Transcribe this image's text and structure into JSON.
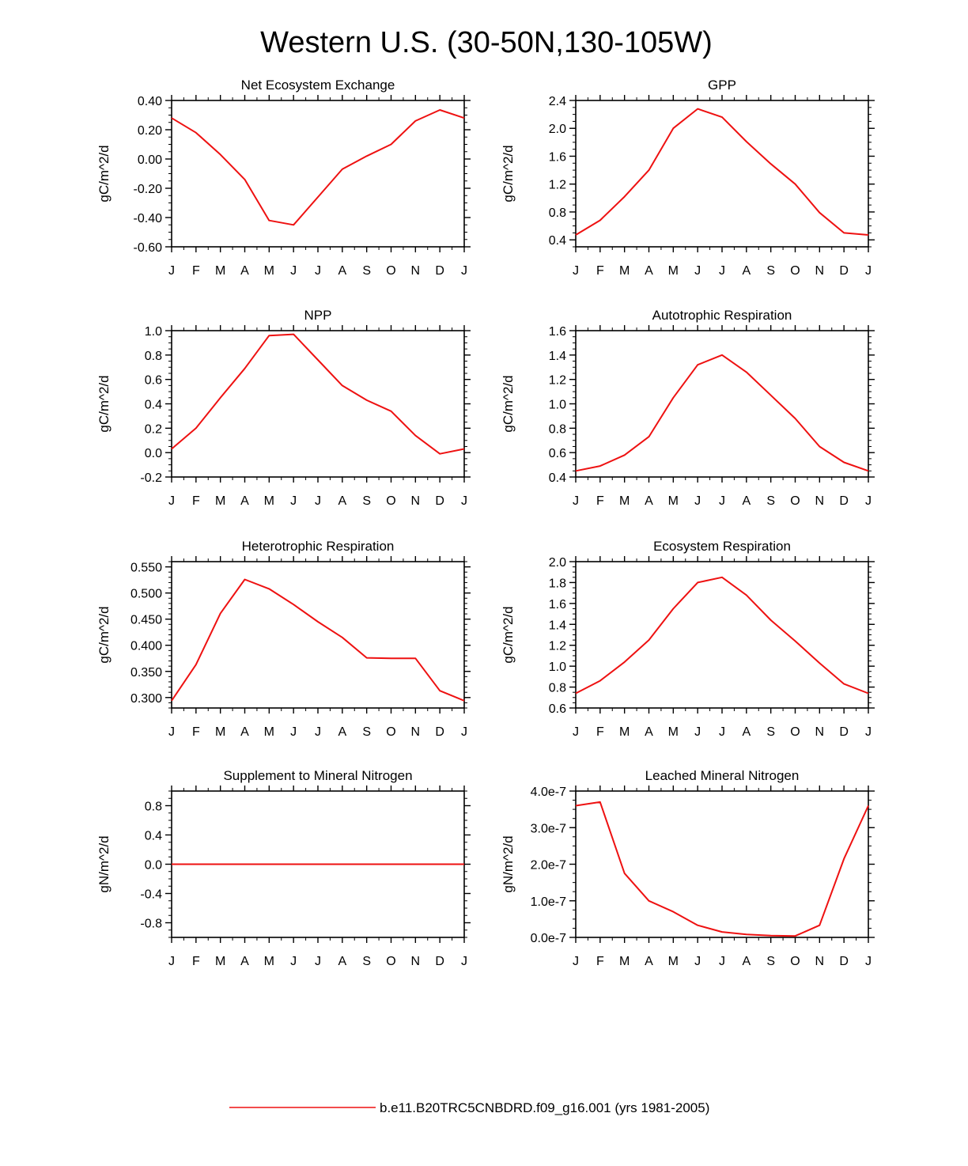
{
  "figure": {
    "title": "Western U.S. (30-50N,130-105W)",
    "legend": {
      "label": "b.e11.B20TRC5CNBDRD.f09_g16.001 (yrs 1981-2005)",
      "color": "#ee1111"
    },
    "months": [
      "J",
      "F",
      "M",
      "A",
      "M",
      "J",
      "J",
      "A",
      "S",
      "O",
      "N",
      "D",
      "J"
    ]
  },
  "chart_data": [
    {
      "type": "line",
      "title": "Net Ecosystem Exchange",
      "ylabel": "gC/m^2/d",
      "ylim": [
        -0.6,
        0.4
      ],
      "yticks": [
        -0.6,
        -0.4,
        -0.2,
        0.0,
        0.2,
        0.4
      ],
      "ytick_labels": [
        "-0.60",
        "-0.40",
        "-0.20",
        "0.00",
        "0.20",
        "0.40"
      ],
      "yminor": 0.05,
      "values": [
        0.28,
        0.18,
        0.03,
        -0.14,
        -0.42,
        -0.45,
        -0.26,
        -0.07,
        0.02,
        0.1,
        0.26,
        0.335,
        0.28
      ]
    },
    {
      "type": "line",
      "title": "GPP",
      "ylabel": "gC/m^2/d",
      "ylim": [
        0.3,
        2.4
      ],
      "yticks": [
        0.4,
        0.8,
        1.2,
        1.6,
        2.0,
        2.4
      ],
      "ytick_labels": [
        "0.4",
        "0.8",
        "1.2",
        "1.6",
        "2.0",
        "2.4"
      ],
      "yminor": 0.1,
      "values": [
        0.47,
        0.68,
        1.02,
        1.4,
        2.0,
        2.28,
        2.16,
        1.81,
        1.49,
        1.2,
        0.79,
        0.5,
        0.47
      ]
    },
    {
      "type": "line",
      "title": "NPP",
      "ylabel": "gC/m^2/d",
      "ylim": [
        -0.2,
        1.0
      ],
      "yticks": [
        -0.2,
        0.0,
        0.2,
        0.4,
        0.6,
        0.8,
        1.0
      ],
      "ytick_labels": [
        "-0.2",
        "0.0",
        "0.2",
        "0.4",
        "0.6",
        "0.8",
        "1.0"
      ],
      "yminor": 0.05,
      "values": [
        0.03,
        0.2,
        0.45,
        0.69,
        0.96,
        0.97,
        0.76,
        0.55,
        0.43,
        0.34,
        0.14,
        -0.01,
        0.03
      ]
    },
    {
      "type": "line",
      "title": "Autotrophic Respiration",
      "ylabel": "gC/m^2/d",
      "ylim": [
        0.4,
        1.6
      ],
      "yticks": [
        0.4,
        0.6,
        0.8,
        1.0,
        1.2,
        1.4,
        1.6
      ],
      "ytick_labels": [
        "0.4",
        "0.6",
        "0.8",
        "1.0",
        "1.2",
        "1.4",
        "1.6"
      ],
      "yminor": 0.05,
      "values": [
        0.45,
        0.49,
        0.58,
        0.73,
        1.05,
        1.32,
        1.4,
        1.26,
        1.07,
        0.88,
        0.65,
        0.52,
        0.45
      ]
    },
    {
      "type": "line",
      "title": "Heterotrophic Respiration",
      "ylabel": "gC/m^2/d",
      "ylim": [
        0.28,
        0.56
      ],
      "yticks": [
        0.3,
        0.35,
        0.4,
        0.45,
        0.5,
        0.55
      ],
      "ytick_labels": [
        "0.300",
        "0.350",
        "0.400",
        "0.450",
        "0.500",
        "0.550"
      ],
      "yminor": 0.01,
      "values": [
        0.294,
        0.363,
        0.461,
        0.526,
        0.508,
        0.478,
        0.445,
        0.415,
        0.376,
        0.375,
        0.375,
        0.313,
        0.294
      ]
    },
    {
      "type": "line",
      "title": "Ecosystem Respiration",
      "ylabel": "gC/m^2/d",
      "ylim": [
        0.6,
        2.0
      ],
      "yticks": [
        0.6,
        0.8,
        1.0,
        1.2,
        1.4,
        1.6,
        1.8,
        2.0
      ],
      "ytick_labels": [
        "0.6",
        "0.8",
        "1.0",
        "1.2",
        "1.4",
        "1.6",
        "1.8",
        "2.0"
      ],
      "yminor": 0.05,
      "values": [
        0.74,
        0.86,
        1.04,
        1.25,
        1.55,
        1.8,
        1.85,
        1.68,
        1.44,
        1.24,
        1.03,
        0.83,
        0.74
      ]
    },
    {
      "type": "line",
      "title": "Supplement to Mineral Nitrogen",
      "ylabel": "gN/m^2/d",
      "ylim": [
        -1.0,
        1.0
      ],
      "yticks": [
        -0.8,
        -0.4,
        0.0,
        0.4,
        0.8
      ],
      "ytick_labels": [
        "-0.8",
        "-0.4",
        "0.0",
        "0.4",
        "0.8"
      ],
      "yminor": 0.1,
      "values": [
        0,
        0,
        0,
        0,
        0,
        0,
        0,
        0,
        0,
        0,
        0,
        0,
        0
      ]
    },
    {
      "type": "line",
      "title": "Leached Mineral Nitrogen",
      "ylabel": "gN/m^2/d",
      "ylim": [
        0,
        4e-07
      ],
      "yticks": [
        0,
        1e-07,
        2e-07,
        3e-07,
        4e-07
      ],
      "ytick_labels": [
        "0.0e-7",
        "1.0e-7",
        "2.0e-7",
        "3.0e-7",
        "4.0e-7"
      ],
      "yminor": 2.5e-08,
      "values": [
        3.6e-07,
        3.7e-07,
        1.75e-07,
        1e-07,
        7e-08,
        3.3e-08,
        1.5e-08,
        8e-09,
        5e-09,
        4e-09,
        3.3e-08,
        2.15e-07,
        3.6e-07
      ]
    }
  ]
}
